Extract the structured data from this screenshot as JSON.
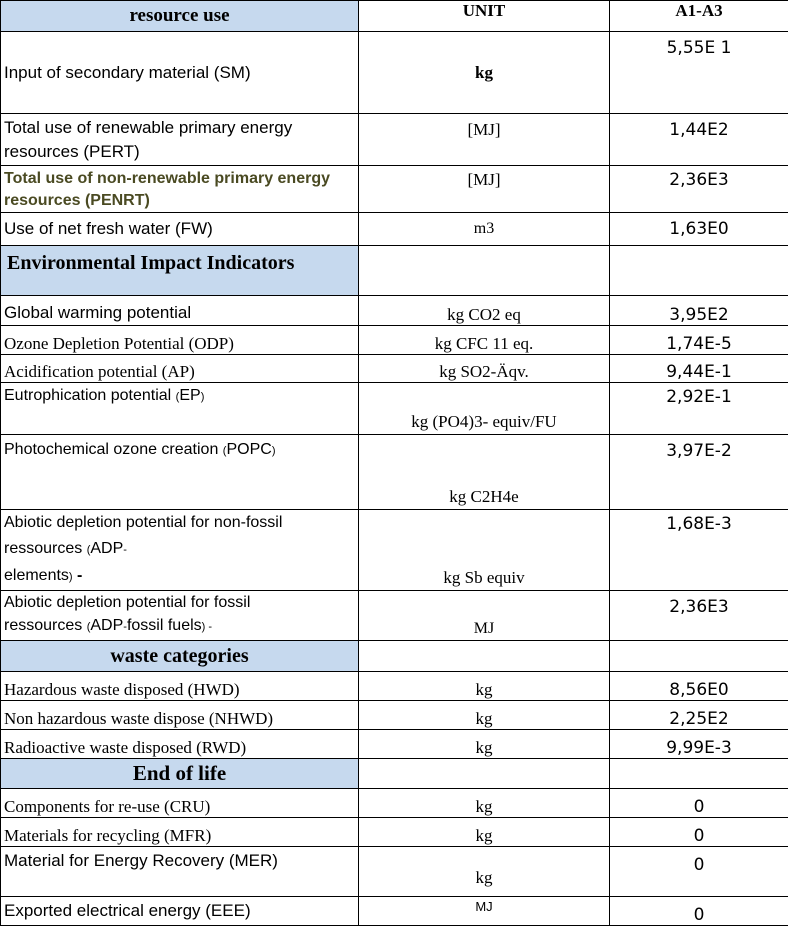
{
  "header": {
    "col1": "resource use",
    "col2": "UNIT",
    "col3": "A1-A3"
  },
  "resource_use": [
    {
      "label": "Input of secondary material (SM)",
      "unit": "kg",
      "value": "5,55E 1"
    },
    {
      "label": "Total use of renewable primary energy resources (PERT)",
      "unit": "[MJ]",
      "value": "1,44E2"
    },
    {
      "label": "Total use of non-renewable primary energy resources (PENRT)",
      "unit": "[MJ]",
      "value": "2,36E3"
    },
    {
      "label": "Use of net fresh water (FW)",
      "unit": "m3",
      "value": "1,63E0"
    }
  ],
  "environmental": {
    "heading": "Environmental Impact Indicators",
    "rows": [
      {
        "label": "Global warming potential",
        "unit": "kg CO2 eq",
        "value": "3,95E2"
      },
      {
        "label": "Ozone Depletion Potential (ODP)",
        "unit": "kg CFC 11 eq.",
        "value": "1,74E-5"
      },
      {
        "label": "Acidification potential (AP)",
        "unit": "kg SO2-Äqv.",
        "value": "9,44E-1"
      },
      {
        "label_a": "Eutrophication potential ",
        "label_b": "(",
        "label_c": "EP",
        "label_d": ")",
        "unit": "kg (PO4)3-  equiv/FU",
        "value": "2,92E-1"
      },
      {
        "label_a": "Photochemical ozone creation ",
        "label_b": "(",
        "label_c": "POPC",
        "label_d": ")",
        "unit": "kg C2H4e",
        "value": "3,97E-2"
      },
      {
        "line1": "Abiotic depletion potential for non-fossil",
        "line2_a": "ressources  ",
        "line2_b": "(",
        "line2_c": "ADP",
        "line2_d": "-",
        "line3_a": "elements",
        "line3_b": ")",
        "line3_c": " -",
        "unit": "kg Sb equiv",
        "value": "1,68E-3"
      },
      {
        "line1": "Abiotic depletion potential for fossil",
        "line2_a": "ressources ",
        "line2_b": "(",
        "line2_c": "ADP",
        "line2_d": "-",
        "line2_e": "fossil fuels",
        "line2_f": ")",
        "line2_g": " -",
        "unit": "MJ",
        "value": "2,36E3"
      }
    ]
  },
  "waste": {
    "heading": "waste categories",
    "rows": [
      {
        "label": "Hazardous waste disposed (HWD)",
        "unit": "kg",
        "value": "8,56E0"
      },
      {
        "label": "Non hazardous waste dispose (NHWD)",
        "unit": "kg",
        "value": "2,25E2"
      },
      {
        "label": "Radioactive waste disposed (RWD)",
        "unit": "kg",
        "value": "9,99E-3"
      }
    ]
  },
  "end_of_life": {
    "heading": "End of life",
    "rows": [
      {
        "label": "Components for re-use (CRU)",
        "unit": "kg",
        "value": "0"
      },
      {
        "label": "Materials for recycling (MFR)",
        "unit": "kg",
        "value": "0"
      },
      {
        "label": "Material for Energy Recovery (MER)",
        "unit": "kg",
        "value": "0"
      },
      {
        "label": "Exported electrical energy (EEE)",
        "unit": "MJ",
        "value": "0"
      }
    ]
  }
}
